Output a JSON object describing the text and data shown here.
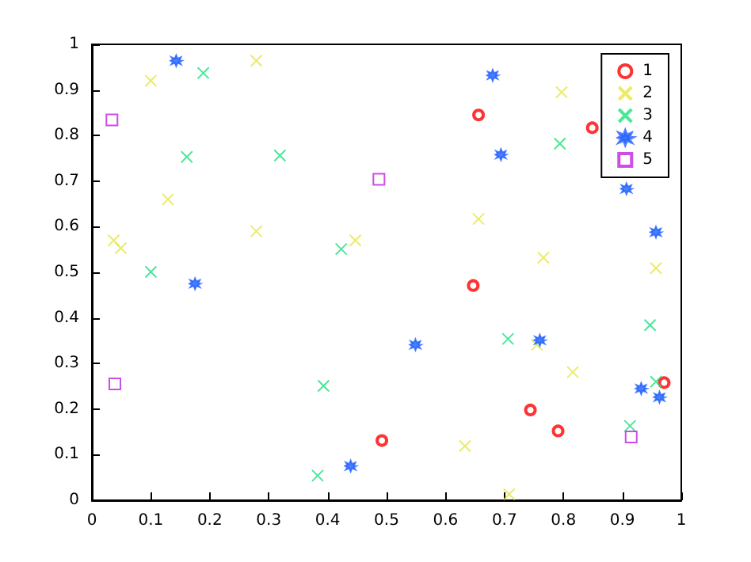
{
  "chart_data": {
    "type": "scatter",
    "xlim": [
      0,
      1
    ],
    "ylim": [
      0,
      1
    ],
    "xticks": [
      0,
      0.1,
      0.2,
      0.3,
      0.4,
      0.5,
      0.6,
      0.7,
      0.8,
      0.9,
      1
    ],
    "yticks": [
      0,
      0.1,
      0.2,
      0.3,
      0.4,
      0.5,
      0.6,
      0.7,
      0.8,
      0.9,
      1
    ],
    "grid": false,
    "legend": "top right",
    "series": [
      {
        "name": "1",
        "color": "#ff0000",
        "marker": "circle",
        "x": [
          0.492,
          0.656,
          0.849,
          0.647,
          0.971,
          0.744,
          0.791
        ],
        "values": [
          0.131,
          0.845,
          0.817,
          0.471,
          0.258,
          0.198,
          0.152
        ]
      },
      {
        "name": "2",
        "color": "#e6e645",
        "marker": "cross",
        "x": [
          0.1,
          0.279,
          0.129,
          0.037,
          0.049,
          0.279,
          0.447,
          0.797,
          0.656,
          0.766,
          0.957,
          0.755,
          0.816,
          0.633,
          0.708
        ],
        "values": [
          0.92,
          0.964,
          0.66,
          0.57,
          0.553,
          0.59,
          0.57,
          0.895,
          0.617,
          0.532,
          0.509,
          0.341,
          0.281,
          0.119,
          0.013
        ]
      },
      {
        "name": "3",
        "color": "#20e080",
        "marker": "cross",
        "x": [
          0.189,
          0.161,
          0.319,
          0.423,
          0.1,
          0.393,
          0.383,
          0.794,
          0.947,
          0.706,
          0.957,
          0.913
        ],
        "values": [
          0.937,
          0.753,
          0.756,
          0.551,
          0.501,
          0.251,
          0.054,
          0.782,
          0.384,
          0.354,
          0.26,
          0.163
        ]
      },
      {
        "name": "4",
        "color": "#2060ff",
        "marker": "star",
        "x": [
          0.143,
          0.175,
          0.439,
          0.68,
          0.694,
          0.907,
          0.957,
          0.76,
          0.549,
          0.932,
          0.963
        ],
        "values": [
          0.964,
          0.475,
          0.075,
          0.932,
          0.758,
          0.683,
          0.588,
          0.351,
          0.341,
          0.245,
          0.226
        ]
      },
      {
        "name": "5",
        "color": "#c020e0",
        "marker": "square",
        "x": [
          0.034,
          0.487,
          0.039,
          0.915
        ],
        "values": [
          0.834,
          0.704,
          0.255,
          0.139
        ]
      }
    ]
  }
}
